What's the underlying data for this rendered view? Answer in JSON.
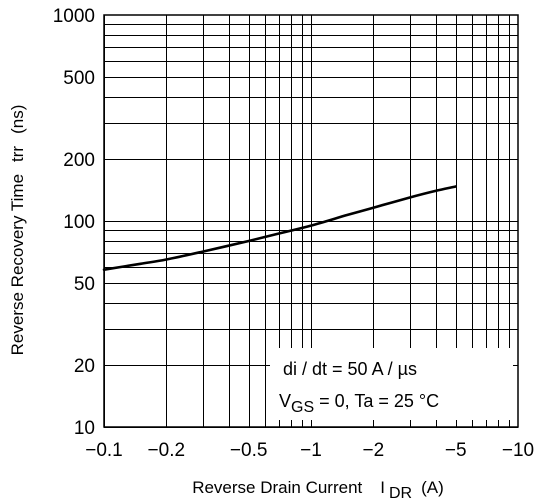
{
  "chart_data": {
    "type": "line",
    "title": "",
    "xlabel": "Reverse Drain Current",
    "xlabel_symbol": "I",
    "xlabel_symbol_sub": "DR",
    "xlabel_unit": "(A)",
    "ylabel": "Reverse Recovery Time",
    "ylabel_symbol": "trr",
    "ylabel_unit": "(ns)",
    "xscale": "log",
    "yscale": "log",
    "xlim": [
      -0.1,
      -10
    ],
    "ylim": [
      10,
      1000
    ],
    "grid": true,
    "x_tick_labels": [
      "−0.1",
      "−0.2",
      "−0.5",
      "−1",
      "−2",
      "−5",
      "−10"
    ],
    "x_tick_values": [
      -0.1,
      -0.2,
      -0.5,
      -1,
      -2,
      -5,
      -10
    ],
    "y_tick_labels": [
      "10",
      "20",
      "50",
      "100",
      "200",
      "500",
      "1000"
    ],
    "y_tick_values": [
      10,
      20,
      50,
      100,
      200,
      500,
      1000
    ],
    "series": [
      {
        "x": [
          -0.1,
          -0.15,
          -0.2,
          -0.3,
          -0.5,
          -0.7,
          -1,
          -1.5,
          -2,
          -3,
          -4,
          -5
        ],
        "y": [
          58,
          62,
          65,
          71,
          80,
          87,
          95,
          107,
          116,
          130,
          140,
          147
        ]
      }
    ],
    "annotations": {
      "line1": "di / dt = 50 A / µs",
      "line2_v": "V",
      "line2_sub": "GS",
      "line2_rest": " = 0, Ta = 25 °C"
    }
  }
}
